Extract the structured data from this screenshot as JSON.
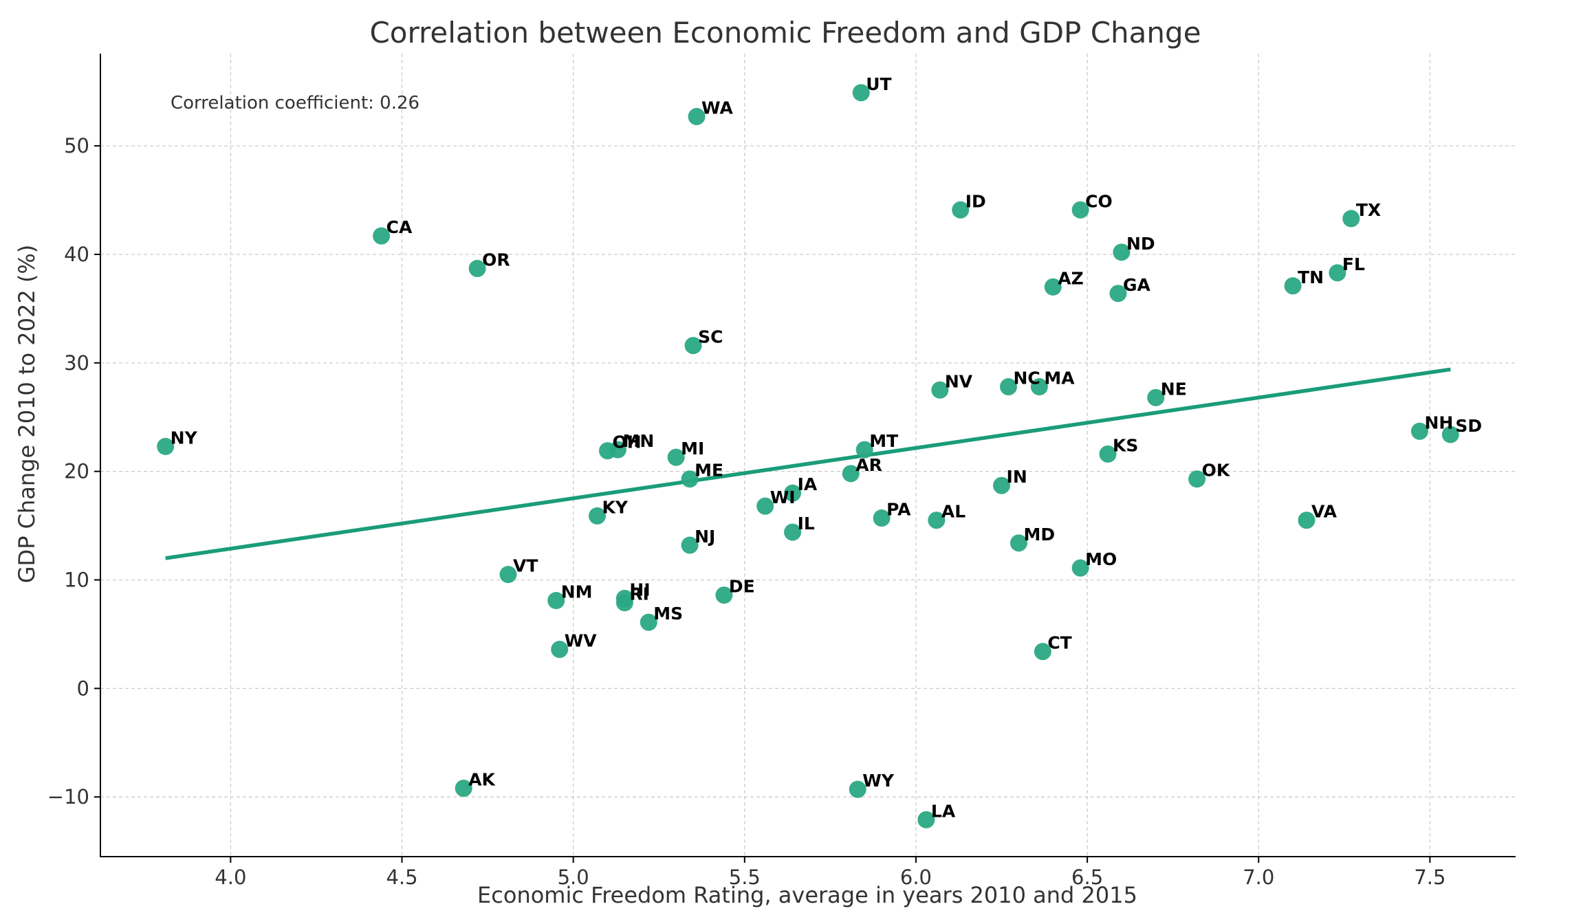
{
  "chart_data": {
    "type": "scatter",
    "title": "Correlation between Economic Freedom and GDP Change",
    "xlabel": "Economic Freedom Rating, average in years 2010 and 2015",
    "ylabel": "GDP Change 2010 to 2022 (%)",
    "xlim": [
      3.62,
      7.75
    ],
    "ylim": [
      -15.5,
      58.5
    ],
    "xticks": [
      4.0,
      4.5,
      5.0,
      5.5,
      6.0,
      6.5,
      7.0,
      7.5
    ],
    "xtick_labels": [
      "4.0",
      "4.5",
      "5.0",
      "5.5",
      "6.0",
      "6.5",
      "7.0",
      "7.5"
    ],
    "yticks": [
      -10,
      0,
      10,
      20,
      30,
      40,
      50
    ],
    "ytick_labels": [
      "−10",
      "0",
      "10",
      "20",
      "30",
      "40",
      "50"
    ],
    "grid": true,
    "annotation": "Correlation coefficient: 0.26",
    "colors": {
      "point": "#2aa884",
      "trend": "#1a9c7a",
      "grid": "#cccccc"
    },
    "trendline": {
      "x": [
        3.81,
        7.56
      ],
      "y": [
        12.0,
        29.4
      ]
    },
    "points": [
      {
        "label": "NY",
        "x": 3.81,
        "y": 22.3
      },
      {
        "label": "CA",
        "x": 4.44,
        "y": 41.7
      },
      {
        "label": "OR",
        "x": 4.72,
        "y": 38.7
      },
      {
        "label": "AK",
        "x": 4.68,
        "y": -9.2
      },
      {
        "label": "VT",
        "x": 4.81,
        "y": 10.5
      },
      {
        "label": "NM",
        "x": 4.95,
        "y": 8.1
      },
      {
        "label": "WV",
        "x": 4.96,
        "y": 3.6
      },
      {
        "label": "KY",
        "x": 5.07,
        "y": 15.9
      },
      {
        "label": "OH",
        "x": 5.1,
        "y": 21.9
      },
      {
        "label": "MN",
        "x": 5.13,
        "y": 22.0
      },
      {
        "label": "HI",
        "x": 5.15,
        "y": 8.3
      },
      {
        "label": "RI",
        "x": 5.15,
        "y": 7.9
      },
      {
        "label": "MS",
        "x": 5.22,
        "y": 6.1
      },
      {
        "label": "MI",
        "x": 5.3,
        "y": 21.3
      },
      {
        "label": "ME",
        "x": 5.34,
        "y": 19.3
      },
      {
        "label": "NJ",
        "x": 5.34,
        "y": 13.2
      },
      {
        "label": "SC",
        "x": 5.35,
        "y": 31.6
      },
      {
        "label": "WA",
        "x": 5.36,
        "y": 52.7
      },
      {
        "label": "DE",
        "x": 5.44,
        "y": 8.6
      },
      {
        "label": "WI",
        "x": 5.56,
        "y": 16.8
      },
      {
        "label": "IA",
        "x": 5.64,
        "y": 18.0
      },
      {
        "label": "IL",
        "x": 5.64,
        "y": 14.4
      },
      {
        "label": "AR",
        "x": 5.81,
        "y": 19.8
      },
      {
        "label": "WY",
        "x": 5.83,
        "y": -9.3
      },
      {
        "label": "UT",
        "x": 5.84,
        "y": 54.9
      },
      {
        "label": "MT",
        "x": 5.85,
        "y": 22.0
      },
      {
        "label": "PA",
        "x": 5.9,
        "y": 15.7
      },
      {
        "label": "LA",
        "x": 6.03,
        "y": -12.1
      },
      {
        "label": "AL",
        "x": 6.06,
        "y": 15.5
      },
      {
        "label": "NV",
        "x": 6.07,
        "y": 27.5
      },
      {
        "label": "ID",
        "x": 6.13,
        "y": 44.1
      },
      {
        "label": "IN",
        "x": 6.25,
        "y": 18.7
      },
      {
        "label": "NC",
        "x": 6.27,
        "y": 27.8
      },
      {
        "label": "MD",
        "x": 6.3,
        "y": 13.4
      },
      {
        "label": "MA",
        "x": 6.36,
        "y": 27.8
      },
      {
        "label": "CT",
        "x": 6.37,
        "y": 3.4
      },
      {
        "label": "AZ",
        "x": 6.4,
        "y": 37.0
      },
      {
        "label": "CO",
        "x": 6.48,
        "y": 44.1
      },
      {
        "label": "MO",
        "x": 6.48,
        "y": 11.1
      },
      {
        "label": "KS",
        "x": 6.56,
        "y": 21.6
      },
      {
        "label": "GA",
        "x": 6.59,
        "y": 36.4
      },
      {
        "label": "ND",
        "x": 6.6,
        "y": 40.2
      },
      {
        "label": "NE",
        "x": 6.7,
        "y": 26.8
      },
      {
        "label": "OK",
        "x": 6.82,
        "y": 19.3
      },
      {
        "label": "TN",
        "x": 7.1,
        "y": 37.1
      },
      {
        "label": "VA",
        "x": 7.14,
        "y": 15.5
      },
      {
        "label": "FL",
        "x": 7.23,
        "y": 38.3
      },
      {
        "label": "TX",
        "x": 7.27,
        "y": 43.3
      },
      {
        "label": "NH",
        "x": 7.47,
        "y": 23.7
      },
      {
        "label": "SD",
        "x": 7.56,
        "y": 23.4
      }
    ]
  }
}
